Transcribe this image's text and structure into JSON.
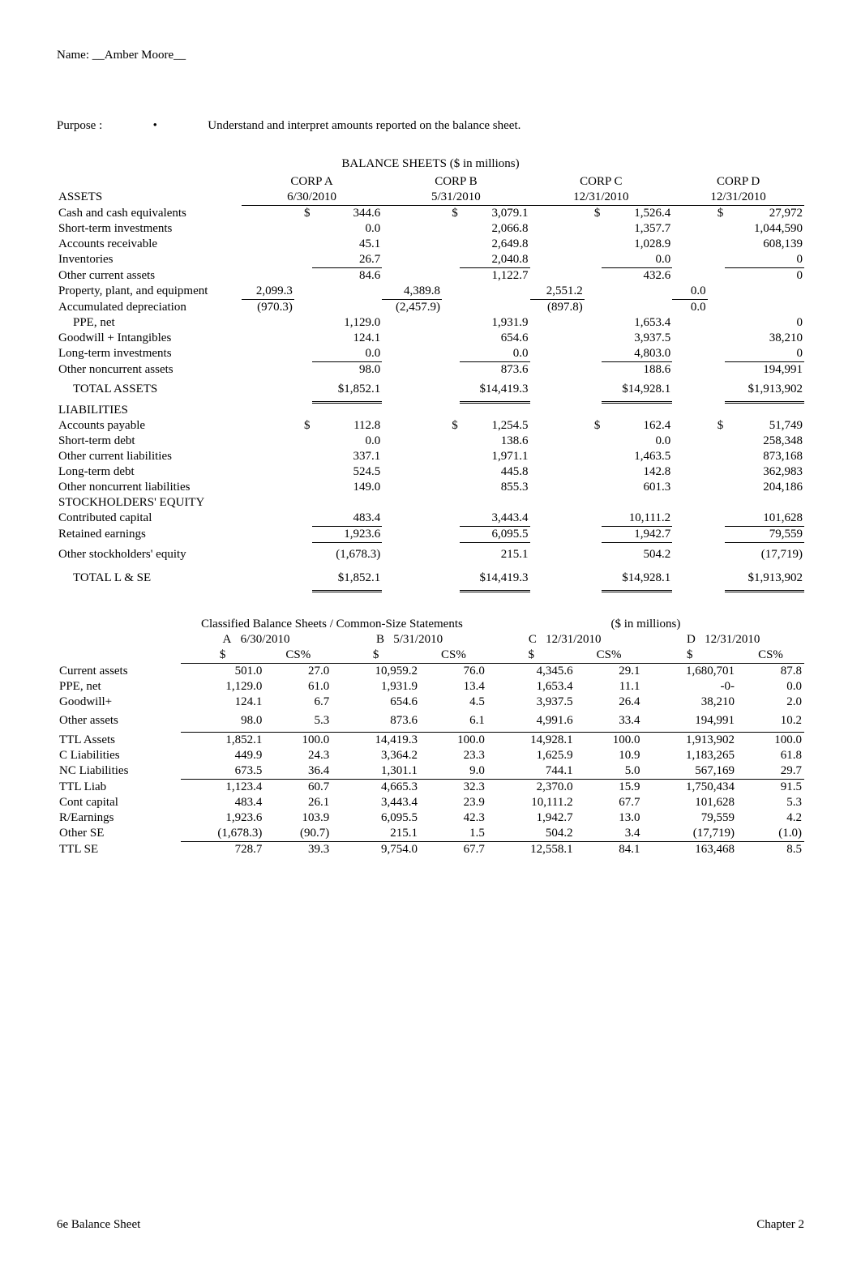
{
  "header": {
    "name_label": "Name: ",
    "name_value": "__Amber Moore__",
    "purpose_label": "Purpose :",
    "bullet": "•",
    "purpose_text": "Understand and interpret amounts reported on the balance sheet."
  },
  "bal": {
    "title": "BALANCE SHEETS   ($ in millions)",
    "corp_headers": [
      "CORP A",
      "CORP B",
      "CORP C",
      "CORP D"
    ],
    "date_row_label": "ASSETS",
    "dates": [
      "6/30/2010",
      "5/31/2010",
      "12/31/2010",
      "12/31/2010"
    ],
    "rows": [
      {
        "label": "Cash and cash equivalents",
        "indent": 0,
        "cur": "$",
        "vals": [
          "344.6",
          "3,079.1",
          "1,526.4",
          "27,972"
        ],
        "curB": "$",
        "curC": "$",
        "curD": "$",
        "curCpre": "$ "
      },
      {
        "label": "Short-term investments",
        "indent": 0,
        "vals": [
          "0.0",
          "2,066.8",
          "1,357.7",
          "1,044,590"
        ]
      },
      {
        "label": "Accounts receivable",
        "indent": 0,
        "vals": [
          "45.1",
          "2,649.8",
          "1,028.9",
          "608,139"
        ]
      },
      {
        "label": "Inventories",
        "indent": 0,
        "vals": [
          "26.7",
          "2,040.8",
          "0.0",
          "0"
        ]
      },
      {
        "label": "Other current assets",
        "indent": 0,
        "vals": [
          "84.6",
          "1,122.7",
          "432.6",
          "0"
        ],
        "rule": "single"
      },
      {
        "label": "Property, plant, and equipment",
        "indent": 0,
        "cols": "left",
        "vals": [
          "2,099.3",
          "4,389.8",
          "2,551.2",
          "0.0"
        ]
      },
      {
        "label": "Accumulated depreciation",
        "indent": 0,
        "cols": "left",
        "vals": [
          "(970.3)",
          "(2,457.9)",
          "(897.8)",
          "0.0"
        ],
        "rule": "single"
      },
      {
        "label": "PPE, net",
        "indent": 1,
        "vals": [
          "1,129.0",
          "1,931.9",
          "1,653.4",
          "0"
        ]
      },
      {
        "label": "Goodwill + Intangibles",
        "indent": 0,
        "vals": [
          "124.1",
          "654.6",
          "3,937.5",
          "38,210"
        ]
      },
      {
        "label": "Long-term investments",
        "indent": 0,
        "vals": [
          "0.0",
          "0.0",
          "4,803.0",
          "0"
        ]
      },
      {
        "label": "Other noncurrent assets",
        "indent": 0,
        "vals": [
          "98.0",
          "873.6",
          "188.6",
          "194,991"
        ],
        "rule": "single"
      },
      {
        "label": "TOTAL ASSETS",
        "indent": 1,
        "vals": [
          "$1,852.1",
          "$14,419.3",
          "$14,928.1",
          "$1,913,902"
        ],
        "rule": "double",
        "tall": true
      }
    ],
    "liab_header": "LIABILITIES",
    "rows2": [
      {
        "label": "Accounts payable",
        "indent": 0,
        "cur": "$",
        "vals": [
          "112.8",
          "1,254.5",
          "162.4",
          "51,749"
        ],
        "curAll": true
      },
      {
        "label": "Short-term debt",
        "indent": 0,
        "vals": [
          "0.0",
          "138.6",
          "0.0",
          "258,348"
        ]
      },
      {
        "label": "Other current liabilities",
        "indent": 0,
        "vals": [
          "337.1",
          "1,971.1",
          "1,463.5",
          "873,168"
        ]
      },
      {
        "label": "Long-term debt",
        "indent": 0,
        "vals": [
          "524.5",
          "445.8",
          "142.8",
          "362,983"
        ]
      },
      {
        "label": "Other noncurrent liabilities",
        "indent": 0,
        "vals": [
          "149.0",
          "855.3",
          "601.3",
          "204,186"
        ]
      }
    ],
    "se_header": "STOCKHOLDERS' EQUITY",
    "rows3": [
      {
        "label": "Contributed capital",
        "indent": 0,
        "vals": [
          "483.4",
          "3,443.4",
          "10,111.2",
          "101,628"
        ]
      },
      {
        "label": "Retained earnings",
        "indent": 0,
        "vals": [
          "1,923.6",
          "6,095.5",
          "1,942.7",
          "79,559"
        ],
        "rule": "single"
      },
      {
        "label": "Other stockholders' equity",
        "indent": 0,
        "vals": [
          "(1,678.3)",
          "215.1",
          "504.2",
          "(17,719)"
        ],
        "rule": "single",
        "tall": true
      },
      {
        "label": "TOTAL L & SE",
        "indent": 1,
        "vals": [
          "$1,852.1",
          "$14,419.3",
          "$14,928.1",
          "$1,913,902"
        ],
        "rule": "double",
        "tall": true
      }
    ]
  },
  "cs": {
    "title_left": "Classified Balance Sheets / Common-Size Statements",
    "title_right": "($ in millions)",
    "col_groups": [
      {
        "letter": "A",
        "date": "6/30/2010"
      },
      {
        "letter": "B",
        "date": "5/31/2010"
      },
      {
        "letter": "C",
        "date": "12/31/2010"
      },
      {
        "letter": "D",
        "date": "12/31/2010"
      }
    ],
    "subhead_dollar": "$",
    "subhead_cs": "CS%",
    "rows": [
      {
        "label": "Current assets",
        "v": [
          "501.0",
          "27.0",
          "10,959.2",
          "76.0",
          "4,345.6",
          "29.1",
          "1,680,701",
          "87.8"
        ]
      },
      {
        "label": "PPE, net",
        "v": [
          "1,129.0",
          "61.0",
          "1,931.9",
          "13.4",
          "1,653.4",
          "11.1",
          "-0-",
          "0.0"
        ]
      },
      {
        "label": "Goodwill+",
        "v": [
          "124.1",
          "6.7",
          "654.6",
          "4.5",
          "3,937.5",
          "26.4",
          "38,210",
          "2.0"
        ]
      },
      {
        "label": "Other assets",
        "v": [
          "98.0",
          "5.3",
          "873.6",
          "6.1",
          "4,991.6",
          "33.4",
          "194,991",
          "10.2"
        ],
        "rule": true,
        "tall": true
      },
      {
        "label": "TTL Assets",
        "v": [
          "1,852.1",
          "100.0",
          "14,419.3",
          "100.0",
          "14,928.1",
          "100.0",
          "1,913,902",
          "100.0"
        ]
      },
      {
        "label": "C Liabilities",
        "v": [
          "449.9",
          "24.3",
          "3,364.2",
          "23.3",
          "1,625.9",
          "10.9",
          "1,183,265",
          "61.8"
        ]
      },
      {
        "label": "NC Liabilities",
        "v": [
          "673.5",
          "36.4",
          "1,301.1",
          "9.0",
          "744.1",
          "5.0",
          "567,169",
          "29.7"
        ],
        "rule": true
      },
      {
        "label": "TTL Liab",
        "v": [
          "1,123.4",
          "60.7",
          "4,665.3",
          "32.3",
          "2,370.0",
          "15.9",
          "1,750,434",
          "91.5"
        ]
      },
      {
        "label": "Cont capital",
        "v": [
          "483.4",
          "26.1",
          "3,443.4",
          "23.9",
          "10,111.2",
          "67.7",
          "101,628",
          "5.3"
        ]
      },
      {
        "label": "R/Earnings",
        "v": [
          "1,923.6",
          "103.9",
          "6,095.5",
          "42.3",
          "1,942.7",
          "13.0",
          "79,559",
          "4.2"
        ]
      },
      {
        "label": "Other SE",
        "v": [
          "(1,678.3)",
          "(90.7)",
          "215.1",
          "1.5",
          "504.2",
          "3.4",
          "(17,719)",
          "(1.0)"
        ],
        "rule": true
      },
      {
        "label": "TTL SE",
        "v": [
          "728.7",
          "39.3",
          "9,754.0",
          "67.7",
          "12,558.1",
          "84.1",
          "163,468",
          "8.5"
        ]
      }
    ]
  },
  "footer": {
    "left": "6e Balance Sheet",
    "right": "Chapter 2"
  }
}
